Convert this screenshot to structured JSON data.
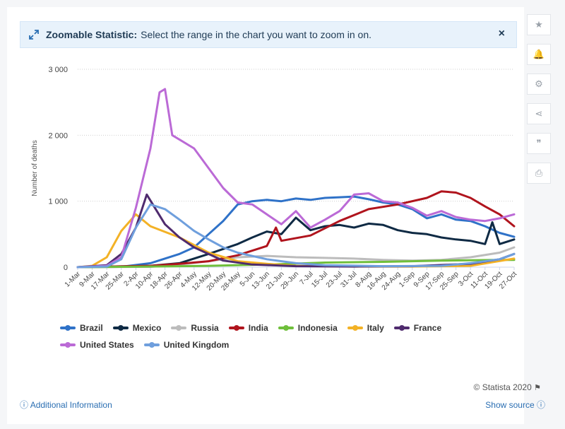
{
  "banner": {
    "title": "Zoomable Statistic:",
    "text": "Select the range in the chart you want to zoom in on.",
    "close_label": "×"
  },
  "sidebar": {
    "buttons": [
      {
        "name": "favorite-button",
        "icon": "star-icon",
        "glyph": "★"
      },
      {
        "name": "notification-button",
        "icon": "bell-icon",
        "glyph": "🔔"
      },
      {
        "name": "settings-button",
        "icon": "gear-icon",
        "glyph": "⚙"
      },
      {
        "name": "share-button",
        "icon": "share-icon",
        "glyph": "⋖"
      },
      {
        "name": "cite-button",
        "icon": "quote-icon",
        "glyph": "❞"
      },
      {
        "name": "print-button",
        "icon": "print-icon",
        "glyph": "⎙"
      }
    ]
  },
  "footer": {
    "credit": "© Statista 2020",
    "additional_info": "Additional Information",
    "show_source": "Show source"
  },
  "chart_data": {
    "type": "line",
    "ylabel": "Number of deaths",
    "ylim": [
      0,
      3000
    ],
    "yticks": [
      0,
      1000,
      2000,
      3000
    ],
    "ytick_labels": [
      "0",
      "1 000",
      "2 000",
      "3 000"
    ],
    "x_tick_labels": [
      "1-Mar",
      "9-Mar",
      "17-Mar",
      "25-Mar",
      "2-Apr",
      "10-Apr",
      "18-Apr",
      "26-Apr",
      "4-May",
      "12-May",
      "20-May",
      "28-May",
      "5-Jun",
      "13-Jun",
      "21-Jun",
      "29-Jun",
      "7-Jul",
      "15-Jul",
      "23-Jul",
      "31-Jul",
      "8-Aug",
      "16-Aug",
      "24-Aug",
      "1-Sep",
      "9-Sep",
      "17-Sep",
      "25-Sep",
      "3-Oct",
      "11-Oct",
      "19-Oct",
      "27-Oct"
    ],
    "x_range": [
      "2020-03-01",
      "2020-10-27"
    ],
    "legend_position": "bottom",
    "series": [
      {
        "name": "Brazil",
        "color": "#2f72c8",
        "points": [
          [
            "2020-03-01",
            0
          ],
          [
            "2020-03-25",
            5
          ],
          [
            "2020-04-10",
            60
          ],
          [
            "2020-04-26",
            200
          ],
          [
            "2020-05-04",
            300
          ],
          [
            "2020-05-12",
            500
          ],
          [
            "2020-05-20",
            700
          ],
          [
            "2020-05-28",
            950
          ],
          [
            "2020-06-05",
            1000
          ],
          [
            "2020-06-13",
            1020
          ],
          [
            "2020-06-21",
            1000
          ],
          [
            "2020-06-29",
            1040
          ],
          [
            "2020-07-07",
            1020
          ],
          [
            "2020-07-15",
            1050
          ],
          [
            "2020-07-23",
            1060
          ],
          [
            "2020-07-31",
            1070
          ],
          [
            "2020-08-08",
            1030
          ],
          [
            "2020-08-16",
            980
          ],
          [
            "2020-08-24",
            950
          ],
          [
            "2020-09-01",
            880
          ],
          [
            "2020-09-09",
            740
          ],
          [
            "2020-09-17",
            800
          ],
          [
            "2020-09-25",
            720
          ],
          [
            "2020-10-03",
            700
          ],
          [
            "2020-10-11",
            620
          ],
          [
            "2020-10-19",
            520
          ],
          [
            "2020-10-27",
            460
          ]
        ]
      },
      {
        "name": "Mexico",
        "color": "#0f2a44",
        "points": [
          [
            "2020-03-01",
            0
          ],
          [
            "2020-04-10",
            20
          ],
          [
            "2020-04-26",
            60
          ],
          [
            "2020-05-12",
            200
          ],
          [
            "2020-05-28",
            350
          ],
          [
            "2020-06-05",
            450
          ],
          [
            "2020-06-13",
            540
          ],
          [
            "2020-06-21",
            500
          ],
          [
            "2020-06-29",
            750
          ],
          [
            "2020-07-07",
            560
          ],
          [
            "2020-07-15",
            620
          ],
          [
            "2020-07-23",
            640
          ],
          [
            "2020-07-31",
            600
          ],
          [
            "2020-08-08",
            660
          ],
          [
            "2020-08-16",
            640
          ],
          [
            "2020-08-24",
            560
          ],
          [
            "2020-09-01",
            520
          ],
          [
            "2020-09-09",
            500
          ],
          [
            "2020-09-17",
            450
          ],
          [
            "2020-09-25",
            420
          ],
          [
            "2020-10-03",
            400
          ],
          [
            "2020-10-11",
            350
          ],
          [
            "2020-10-15",
            680
          ],
          [
            "2020-10-19",
            350
          ],
          [
            "2020-10-27",
            420
          ]
        ]
      },
      {
        "name": "Russia",
        "color": "#bcbcbc",
        "points": [
          [
            "2020-03-01",
            0
          ],
          [
            "2020-04-10",
            5
          ],
          [
            "2020-04-26",
            40
          ],
          [
            "2020-05-12",
            90
          ],
          [
            "2020-05-28",
            150
          ],
          [
            "2020-06-13",
            170
          ],
          [
            "2020-06-29",
            150
          ],
          [
            "2020-07-15",
            140
          ],
          [
            "2020-07-31",
            130
          ],
          [
            "2020-08-16",
            110
          ],
          [
            "2020-09-01",
            100
          ],
          [
            "2020-09-17",
            110
          ],
          [
            "2020-10-03",
            150
          ],
          [
            "2020-10-19",
            220
          ],
          [
            "2020-10-27",
            300
          ]
        ]
      },
      {
        "name": "India",
        "color": "#b0141d",
        "points": [
          [
            "2020-03-01",
            0
          ],
          [
            "2020-04-10",
            20
          ],
          [
            "2020-04-26",
            50
          ],
          [
            "2020-05-12",
            90
          ],
          [
            "2020-05-28",
            180
          ],
          [
            "2020-06-13",
            320
          ],
          [
            "2020-06-18",
            600
          ],
          [
            "2020-06-21",
            400
          ],
          [
            "2020-07-07",
            480
          ],
          [
            "2020-07-23",
            700
          ],
          [
            "2020-08-08",
            880
          ],
          [
            "2020-08-24",
            950
          ],
          [
            "2020-09-09",
            1050
          ],
          [
            "2020-09-17",
            1150
          ],
          [
            "2020-09-25",
            1130
          ],
          [
            "2020-10-03",
            1050
          ],
          [
            "2020-10-11",
            920
          ],
          [
            "2020-10-19",
            800
          ],
          [
            "2020-10-27",
            620
          ]
        ]
      },
      {
        "name": "Indonesia",
        "color": "#6fbf3b",
        "points": [
          [
            "2020-03-01",
            0
          ],
          [
            "2020-04-10",
            10
          ],
          [
            "2020-05-12",
            20
          ],
          [
            "2020-06-13",
            40
          ],
          [
            "2020-07-15",
            70
          ],
          [
            "2020-08-16",
            80
          ],
          [
            "2020-09-17",
            100
          ],
          [
            "2020-10-19",
            110
          ],
          [
            "2020-10-27",
            110
          ]
        ]
      },
      {
        "name": "Italy",
        "color": "#f3b226",
        "points": [
          [
            "2020-03-01",
            0
          ],
          [
            "2020-03-09",
            20
          ],
          [
            "2020-03-17",
            150
          ],
          [
            "2020-03-25",
            550
          ],
          [
            "2020-04-02",
            800
          ],
          [
            "2020-04-10",
            620
          ],
          [
            "2020-04-26",
            450
          ],
          [
            "2020-05-12",
            220
          ],
          [
            "2020-05-28",
            90
          ],
          [
            "2020-06-13",
            50
          ],
          [
            "2020-06-29",
            20
          ],
          [
            "2020-07-31",
            10
          ],
          [
            "2020-09-01",
            10
          ],
          [
            "2020-10-03",
            20
          ],
          [
            "2020-10-27",
            130
          ]
        ]
      },
      {
        "name": "France",
        "color": "#4f2b6e",
        "points": [
          [
            "2020-03-01",
            0
          ],
          [
            "2020-03-17",
            30
          ],
          [
            "2020-03-25",
            200
          ],
          [
            "2020-04-02",
            600
          ],
          [
            "2020-04-08",
            1100
          ],
          [
            "2020-04-18",
            650
          ],
          [
            "2020-04-26",
            450
          ],
          [
            "2020-05-04",
            300
          ],
          [
            "2020-05-20",
            100
          ],
          [
            "2020-06-05",
            40
          ],
          [
            "2020-06-29",
            15
          ],
          [
            "2020-07-31",
            10
          ],
          [
            "2020-09-01",
            15
          ],
          [
            "2020-10-03",
            50
          ],
          [
            "2020-10-19",
            120
          ],
          [
            "2020-10-27",
            200
          ]
        ]
      },
      {
        "name": "United States",
        "color": "#bb6ad6",
        "points": [
          [
            "2020-03-01",
            0
          ],
          [
            "2020-03-17",
            20
          ],
          [
            "2020-03-25",
            150
          ],
          [
            "2020-04-02",
            900
          ],
          [
            "2020-04-10",
            1800
          ],
          [
            "2020-04-15",
            2650
          ],
          [
            "2020-04-18",
            2700
          ],
          [
            "2020-04-22",
            2000
          ],
          [
            "2020-05-04",
            1800
          ],
          [
            "2020-05-12",
            1500
          ],
          [
            "2020-05-20",
            1200
          ],
          [
            "2020-05-28",
            980
          ],
          [
            "2020-06-05",
            950
          ],
          [
            "2020-06-13",
            800
          ],
          [
            "2020-06-21",
            650
          ],
          [
            "2020-06-29",
            850
          ],
          [
            "2020-07-07",
            600
          ],
          [
            "2020-07-15",
            720
          ],
          [
            "2020-07-23",
            850
          ],
          [
            "2020-07-31",
            1100
          ],
          [
            "2020-08-08",
            1120
          ],
          [
            "2020-08-16",
            1000
          ],
          [
            "2020-08-24",
            980
          ],
          [
            "2020-09-01",
            900
          ],
          [
            "2020-09-09",
            780
          ],
          [
            "2020-09-17",
            850
          ],
          [
            "2020-09-25",
            760
          ],
          [
            "2020-10-03",
            720
          ],
          [
            "2020-10-11",
            700
          ],
          [
            "2020-10-19",
            740
          ],
          [
            "2020-10-27",
            800
          ]
        ]
      },
      {
        "name": "United Kingdom",
        "color": "#6f9fdd",
        "points": [
          [
            "2020-03-01",
            0
          ],
          [
            "2020-03-17",
            10
          ],
          [
            "2020-03-25",
            120
          ],
          [
            "2020-04-02",
            600
          ],
          [
            "2020-04-10",
            950
          ],
          [
            "2020-04-18",
            880
          ],
          [
            "2020-04-26",
            720
          ],
          [
            "2020-05-04",
            550
          ],
          [
            "2020-05-12",
            420
          ],
          [
            "2020-05-20",
            300
          ],
          [
            "2020-05-28",
            220
          ],
          [
            "2020-06-13",
            120
          ],
          [
            "2020-06-29",
            60
          ],
          [
            "2020-07-15",
            30
          ],
          [
            "2020-08-16",
            15
          ],
          [
            "2020-09-17",
            20
          ],
          [
            "2020-10-03",
            60
          ],
          [
            "2020-10-19",
            120
          ],
          [
            "2020-10-27",
            200
          ]
        ]
      }
    ]
  }
}
